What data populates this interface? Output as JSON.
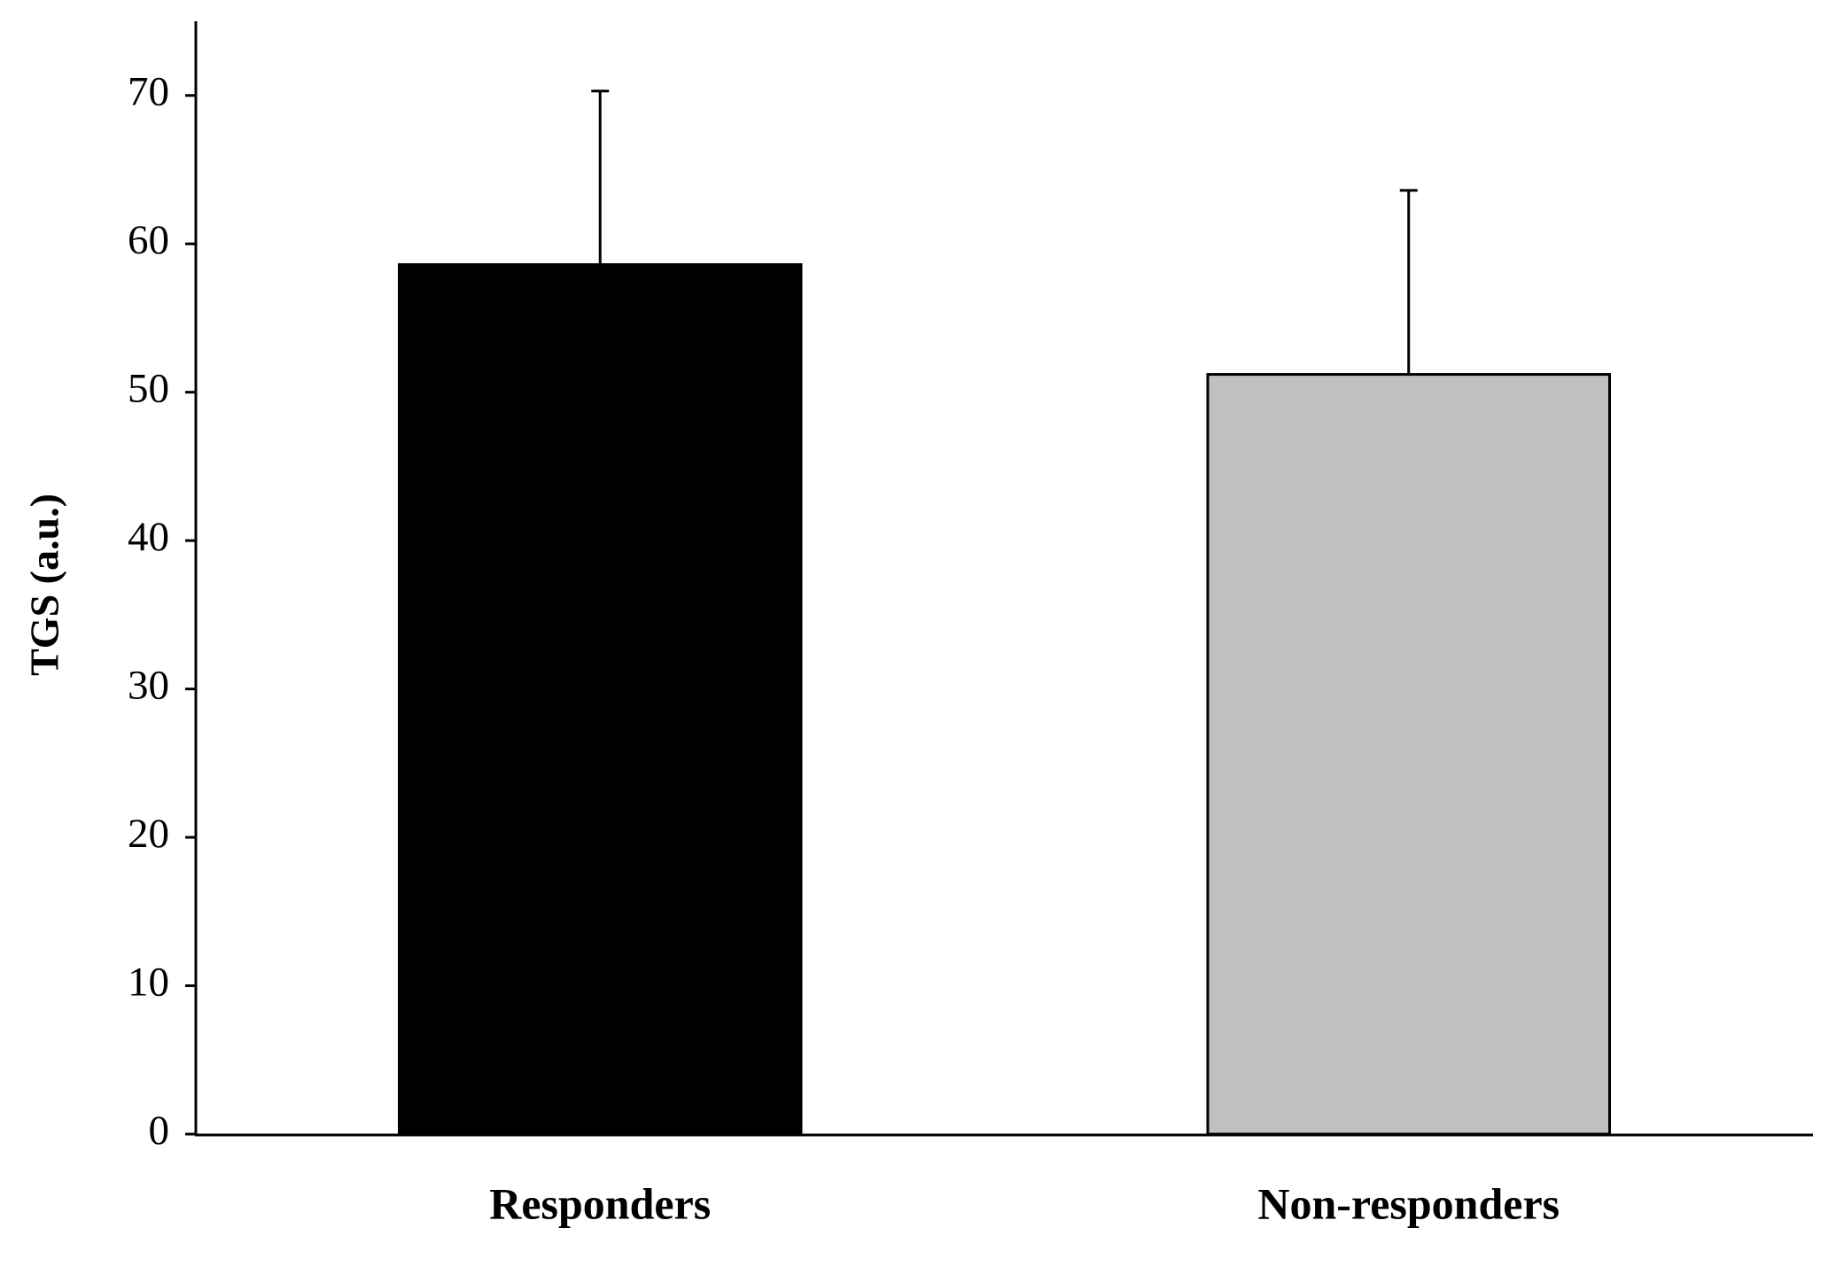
{
  "chart_data": {
    "type": "bar",
    "y_label": "TGS (a.u.)",
    "categories": [
      "Responders",
      "Non-responders"
    ],
    "values": [
      58.6,
      51.2
    ],
    "errors": [
      11.7,
      12.4
    ],
    "colors": [
      "#000000",
      "#c0c0c0"
    ],
    "ylim": [
      0,
      75
    ],
    "yticks": [
      0,
      10,
      20,
      30,
      40,
      50,
      60,
      70
    ],
    "grid": false
  }
}
